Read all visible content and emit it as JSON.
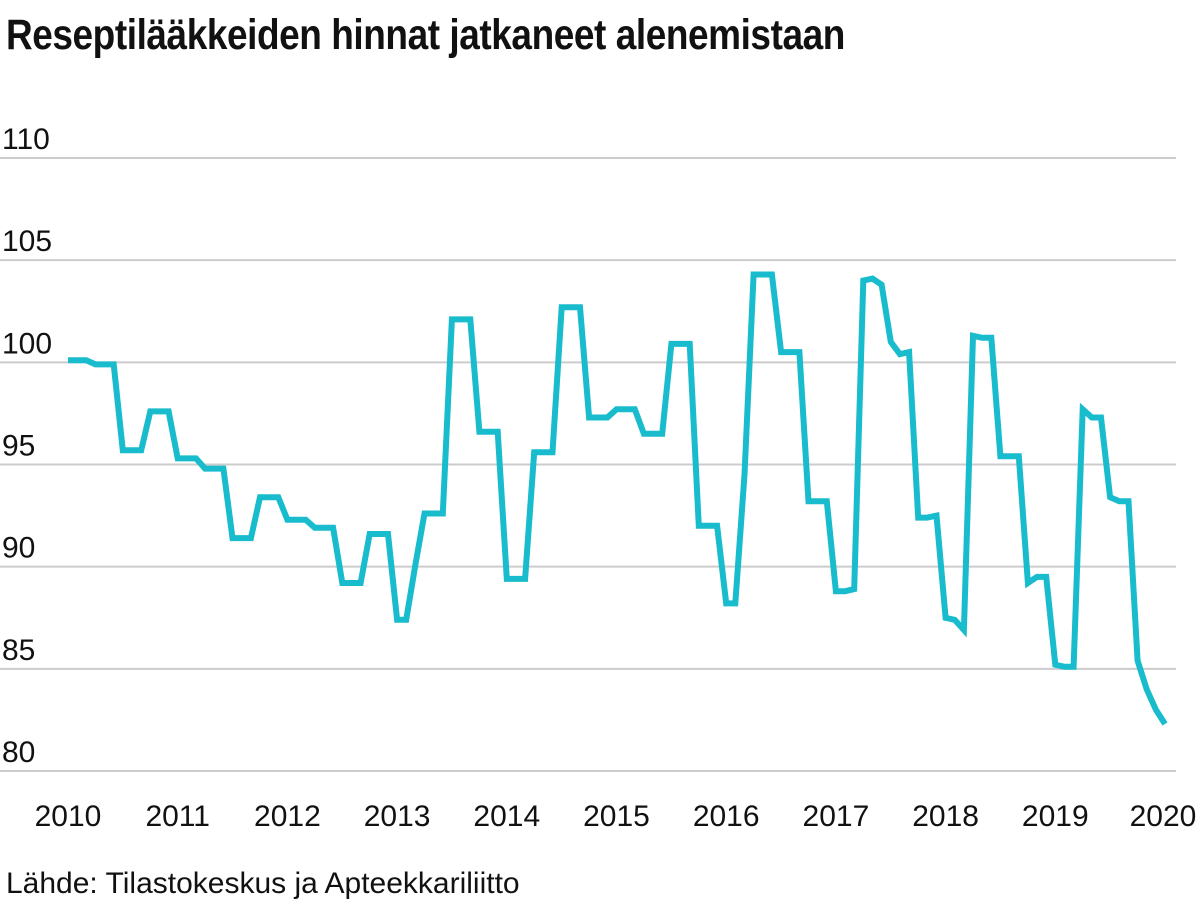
{
  "chart_data": {
    "type": "line",
    "title": "Reseptilääkkeiden hinnat jatkaneet alenemistaan",
    "source": "Lähde: Tilastokeskus ja Apteekkariliitto",
    "xlabel": "",
    "ylabel": "",
    "x_ticks": [
      "2010",
      "2011",
      "2012",
      "2013",
      "2014",
      "2015",
      "2016",
      "2017",
      "2018",
      "2019",
      "2020"
    ],
    "y_ticks": [
      "110",
      "105",
      "100",
      "95",
      "90",
      "85",
      "80"
    ],
    "xlim": [
      2010,
      2020
    ],
    "ylim": [
      80,
      110
    ],
    "grid": true,
    "line_color": "#19bccd",
    "grid_color": "#cccccc",
    "series": [
      {
        "x": [
          2010.0,
          2010.083,
          2010.167,
          2010.25,
          2010.333,
          2010.417,
          2010.5,
          2010.583,
          2010.667,
          2010.75,
          2010.833,
          2010.917,
          2011.0,
          2011.083,
          2011.167,
          2011.25,
          2011.333,
          2011.417,
          2011.5,
          2011.583,
          2011.667,
          2011.75,
          2011.833,
          2011.917,
          2012.0,
          2012.083,
          2012.167,
          2012.25,
          2012.333,
          2012.417,
          2012.5,
          2012.583,
          2012.667,
          2012.75,
          2012.833,
          2012.917,
          2013.0,
          2013.083,
          2013.167,
          2013.25,
          2013.333,
          2013.417,
          2013.5,
          2013.583,
          2013.667,
          2013.75,
          2013.833,
          2013.917,
          2014.0,
          2014.083,
          2014.167,
          2014.25,
          2014.333,
          2014.417,
          2014.5,
          2014.583,
          2014.667,
          2014.75,
          2014.833,
          2014.917,
          2015.0,
          2015.083,
          2015.167,
          2015.25,
          2015.333,
          2015.417,
          2015.5,
          2015.583,
          2015.667,
          2015.75,
          2015.833,
          2015.917,
          2016.0,
          2016.083,
          2016.167,
          2016.25,
          2016.333,
          2016.417,
          2016.5,
          2016.583,
          2016.667,
          2016.75,
          2016.833,
          2016.917,
          2017.0,
          2017.083,
          2017.167,
          2017.25,
          2017.333,
          2017.417,
          2017.5,
          2017.583,
          2017.667,
          2017.75,
          2017.833,
          2017.917,
          2018.0,
          2018.083,
          2018.167,
          2018.25,
          2018.333,
          2018.417,
          2018.5,
          2018.583,
          2018.667,
          2018.75,
          2018.833,
          2018.917,
          2019.0,
          2019.083,
          2019.167,
          2019.25,
          2019.333,
          2019.417,
          2019.5,
          2019.583,
          2019.667,
          2019.75,
          2019.833,
          2019.917,
          2020.0
        ],
        "values": [
          100.1,
          100.1,
          100.1,
          99.9,
          99.9,
          99.9,
          95.7,
          95.7,
          95.7,
          97.6,
          97.6,
          97.6,
          95.3,
          95.3,
          95.3,
          94.8,
          94.8,
          94.8,
          91.4,
          91.4,
          91.4,
          93.4,
          93.4,
          93.4,
          92.3,
          92.3,
          92.3,
          91.9,
          91.9,
          91.9,
          89.2,
          89.2,
          89.2,
          91.6,
          91.6,
          91.6,
          87.4,
          87.4,
          90.1,
          92.6,
          92.6,
          92.6,
          102.1,
          102.1,
          102.1,
          96.6,
          96.6,
          96.6,
          89.4,
          89.4,
          89.4,
          95.6,
          95.6,
          95.6,
          102.7,
          102.7,
          102.7,
          97.3,
          97.3,
          97.3,
          97.7,
          97.7,
          97.7,
          96.5,
          96.5,
          96.5,
          100.9,
          100.9,
          100.9,
          92.0,
          92.0,
          92.0,
          88.2,
          88.2,
          94.5,
          104.3,
          104.3,
          104.3,
          100.5,
          100.5,
          100.5,
          93.2,
          93.2,
          93.2,
          88.8,
          88.8,
          88.9,
          104.0,
          104.1,
          103.8,
          101.0,
          100.4,
          100.5,
          92.4,
          92.4,
          92.5,
          87.5,
          87.4,
          86.9,
          101.3,
          101.2,
          101.2,
          95.4,
          95.4,
          95.4,
          89.2,
          89.5,
          89.5,
          85.2,
          85.1,
          85.1,
          97.7,
          97.3,
          97.3,
          93.4,
          93.2,
          93.2,
          85.4,
          84.0,
          83.0,
          82.3
        ]
      }
    ]
  }
}
